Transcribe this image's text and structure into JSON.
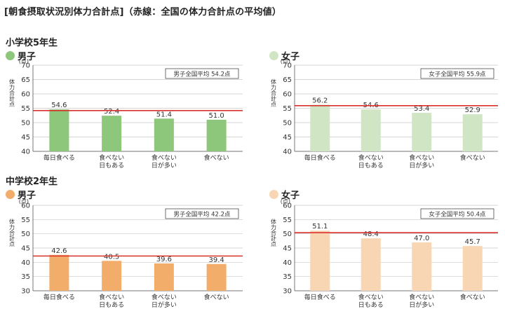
{
  "title": "[朝食摂取状況別体力合計点]（赤線：全国の体力合計点の平均値）",
  "sections": [
    {
      "label": "小学校5年生"
    },
    {
      "label": "中学校2年生"
    }
  ],
  "colors": {
    "boy_elem": "#8dc77b",
    "girl_elem": "#cfe5c4",
    "boy_jr": "#f2ad6b",
    "girl_jr": "#f9d6b3",
    "average_line": "#d9302c"
  },
  "chart_data": [
    {
      "type": "bar",
      "gender": "男子",
      "ylim": [
        40,
        70
      ],
      "ticks": [
        40,
        45,
        50,
        55,
        60,
        65,
        70
      ],
      "unit_label": "(点)",
      "ylabel": "体力合計点",
      "categories": [
        "毎日食べる",
        "食べない日もある",
        "食べない日が多い",
        "食べない"
      ],
      "category_lines": [
        [
          "毎日食べる"
        ],
        [
          "食べない",
          "日もある"
        ],
        [
          "食べない",
          "日が多い"
        ],
        [
          "食べない"
        ]
      ],
      "values": [
        54.6,
        52.4,
        51.4,
        51.0
      ],
      "value_labels": [
        "54.6",
        "52.4",
        "51.4",
        "51.0"
      ],
      "average": 54.2,
      "average_label": "男子全国平均 54.2点",
      "color": "#8dc77b"
    },
    {
      "type": "bar",
      "gender": "女子",
      "ylim": [
        40,
        70
      ],
      "ticks": [
        40,
        45,
        50,
        55,
        60,
        65,
        70
      ],
      "unit_label": "(点)",
      "ylabel": "体力合計点",
      "categories": [
        "毎日食べる",
        "食べない日もある",
        "食べない日が多い",
        "食べない"
      ],
      "category_lines": [
        [
          "毎日食べる"
        ],
        [
          "食べない",
          "日もある"
        ],
        [
          "食べない",
          "日が多い"
        ],
        [
          "食べない"
        ]
      ],
      "values": [
        56.2,
        54.6,
        53.4,
        52.9
      ],
      "value_labels": [
        "56.2",
        "54.6",
        "53.4",
        "52.9"
      ],
      "average": 55.9,
      "average_label": "女子全国平均 55.9点",
      "color": "#cfe5c4"
    },
    {
      "type": "bar",
      "gender": "男子",
      "ylim": [
        30,
        60
      ],
      "ticks": [
        30,
        35,
        40,
        45,
        50,
        55,
        60
      ],
      "unit_label": "(点)",
      "ylabel": "体力合計点",
      "categories": [
        "毎日食べる",
        "食べない日もある",
        "食べない日が多い",
        "食べない"
      ],
      "category_lines": [
        [
          "毎日食べる"
        ],
        [
          "食べない",
          "日もある"
        ],
        [
          "食べない",
          "日が多い"
        ],
        [
          "食べない"
        ]
      ],
      "values": [
        42.6,
        40.5,
        39.6,
        39.4
      ],
      "value_labels": [
        "42.6",
        "40.5",
        "39.6",
        "39.4"
      ],
      "average": 42.2,
      "average_label": "男子全国平均 42.2点",
      "color": "#f2ad6b"
    },
    {
      "type": "bar",
      "gender": "女子",
      "ylim": [
        30,
        60
      ],
      "ticks": [
        30,
        35,
        40,
        45,
        50,
        55,
        60
      ],
      "unit_label": "(点)",
      "ylabel": "体力合計点",
      "categories": [
        "毎日食べる",
        "食べない日もある",
        "食べない日が多い",
        "食べない"
      ],
      "category_lines": [
        [
          "毎日食べる"
        ],
        [
          "食べない",
          "日もある"
        ],
        [
          "食べない",
          "日が多い"
        ],
        [
          "食べない"
        ]
      ],
      "values": [
        51.1,
        48.4,
        47.0,
        45.7
      ],
      "value_labels": [
        "51.1",
        "48.4",
        "47.0",
        "45.7"
      ],
      "average": 50.4,
      "average_label": "女子全国平均 50.4点",
      "color": "#f9d6b3"
    }
  ]
}
